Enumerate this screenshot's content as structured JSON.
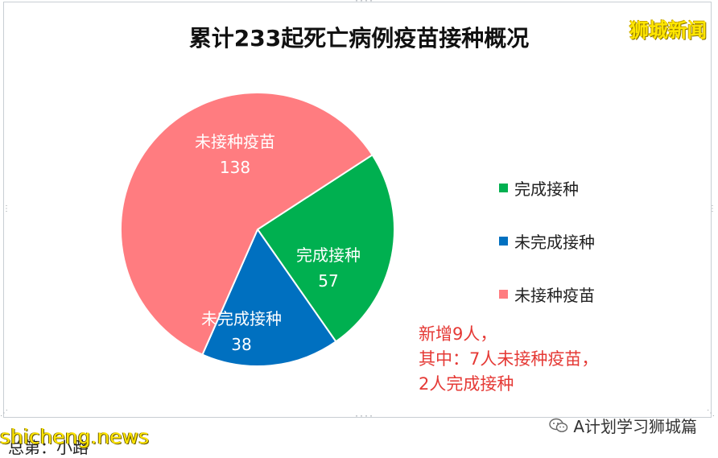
{
  "chart_data": {
    "type": "pie",
    "title": "累计233起死亡病例疫苗接种概况",
    "slices": [
      {
        "label": "完成接种",
        "value": 57,
        "color": "#00b050"
      },
      {
        "label": "未完成接种",
        "value": 38,
        "color": "#0070c0"
      },
      {
        "label": "未接种疫苗",
        "value": 138,
        "color": "#ff7c80"
      }
    ],
    "legend": {
      "placement": "right",
      "entries": [
        "完成接种",
        "未完成接种",
        "未接种疫苗"
      ]
    }
  },
  "annotation": {
    "lines": [
      "新增9人，",
      "其中：7人未接种疫苗，",
      "2人完成接种"
    ],
    "color": "#e53935"
  },
  "watermarks": {
    "top_right": "狮城新闻",
    "bottom_left": "shicheng.news",
    "bottom_left_under": "总第：小路",
    "bottom_right": "A计划学习狮城篇"
  },
  "icons": {
    "bottom_right_icon": "wechat-icon"
  }
}
